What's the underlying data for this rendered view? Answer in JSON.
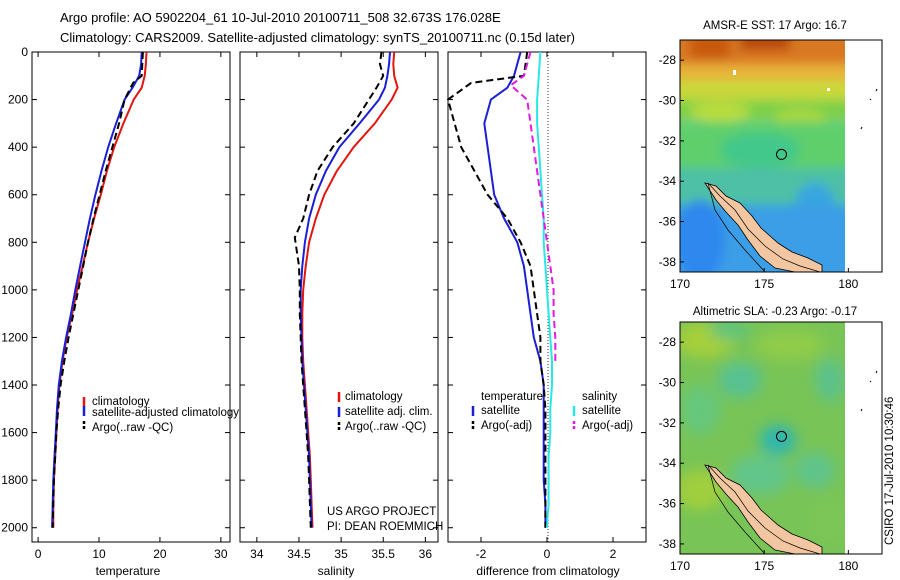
{
  "title": {
    "line1": "Argo profile: AO 5902204_61 10-Jul-2010 20100711_508 32.673S 176.028E",
    "line2": "Climatology: CARS2009. Satellite-adjusted climatology: synTS_20100711.nc (0.15d later)"
  },
  "colors": {
    "red": "#e3150f",
    "blue": "#1a1fd6",
    "black": "#000000",
    "cyan": "#27e8e6",
    "magenta": "#e21be0"
  },
  "project": {
    "line1": "US ARGO PROJECT",
    "line2": "PI: DEAN ROEMMICH"
  },
  "stamp": "CSIRO 17-Jul-2010 10:30:46",
  "chart_data": [
    {
      "type": "line",
      "id": "temperature",
      "xlabel": "temperature",
      "ylabel": "",
      "xlim": [
        -1,
        31.5
      ],
      "ylim": [
        2060,
        0
      ],
      "y_reversed": true,
      "xticks": [
        0,
        10,
        20,
        30
      ],
      "yticks": [
        0,
        200,
        400,
        600,
        800,
        1000,
        1200,
        1400,
        1600,
        1800,
        2000
      ],
      "legend_position": "middle-right",
      "series": [
        {
          "name": "climatology",
          "color": "red",
          "dash": false,
          "x": [
            17.8,
            17.7,
            17.5,
            17.0,
            15.7,
            14.0,
            12.5,
            11.3,
            10.3,
            9.2,
            8.2,
            7.3,
            6.4,
            5.6,
            4.7,
            4.0,
            3.5,
            3.2,
            3.0,
            2.8,
            2.6,
            2.5,
            2.5
          ],
          "y": [
            0,
            50,
            100,
            150,
            200,
            300,
            400,
            500,
            600,
            700,
            800,
            900,
            1000,
            1100,
            1200,
            1300,
            1400,
            1500,
            1600,
            1700,
            1800,
            1900,
            2000
          ]
        },
        {
          "name": "satellite-adjusted climatology",
          "color": "blue",
          "dash": false,
          "x": [
            17.0,
            16.9,
            16.6,
            15.5,
            14.2,
            12.8,
            11.5,
            10.4,
            9.4,
            8.5,
            7.7,
            6.9,
            6.1,
            5.4,
            4.6,
            3.9,
            3.4,
            3.1,
            2.9,
            2.7,
            2.5,
            2.4,
            2.3
          ],
          "y": [
            0,
            50,
            100,
            150,
            200,
            300,
            400,
            500,
            600,
            700,
            800,
            900,
            1000,
            1100,
            1200,
            1300,
            1400,
            1500,
            1600,
            1700,
            1800,
            1900,
            2000
          ]
        },
        {
          "name": "Argo(..raw -QC)",
          "color": "black",
          "dash": true,
          "x": [
            17.2,
            17.0,
            15.6,
            14.2,
            13.3,
            12.2,
            11.1,
            10.1,
            9.1,
            8.2,
            7.4,
            6.6,
            5.8,
            5.0,
            4.3,
            3.7,
            3.3,
            3.0,
            2.8,
            2.6,
            2.5,
            2.4
          ],
          "y": [
            0,
            100,
            130,
            200,
            300,
            400,
            500,
            600,
            700,
            800,
            900,
            1000,
            1100,
            1200,
            1300,
            1400,
            1500,
            1600,
            1700,
            1800,
            1900,
            2000
          ]
        }
      ]
    },
    {
      "type": "line",
      "id": "salinity",
      "xlabel": "salinity",
      "ylabel": "",
      "xlim": [
        33.8,
        36.15
      ],
      "ylim": [
        2060,
        0
      ],
      "y_reversed": true,
      "xticks": [
        34,
        34.5,
        35,
        35.5,
        36
      ],
      "legend_position": "middle-right",
      "series": [
        {
          "name": "climatology",
          "color": "red",
          "dash": false,
          "x": [
            35.63,
            35.62,
            35.63,
            35.67,
            35.6,
            35.4,
            35.15,
            34.95,
            34.8,
            34.7,
            34.62,
            34.58,
            34.55,
            34.54,
            34.54,
            34.55,
            34.57,
            34.59,
            34.61,
            34.63,
            34.64,
            34.65,
            34.66
          ],
          "y": [
            0,
            50,
            100,
            150,
            200,
            300,
            400,
            500,
            600,
            700,
            800,
            900,
            1000,
            1100,
            1200,
            1300,
            1400,
            1500,
            1600,
            1700,
            1800,
            1900,
            2000
          ]
        },
        {
          "name": "satellite adj. clim.",
          "color": "blue",
          "dash": false,
          "x": [
            35.58,
            35.57,
            35.55,
            35.52,
            35.45,
            35.22,
            34.98,
            34.82,
            34.7,
            34.62,
            34.57,
            34.54,
            34.52,
            34.52,
            34.53,
            34.54,
            34.56,
            34.58,
            34.6,
            34.62,
            34.63,
            34.64,
            34.65
          ],
          "y": [
            0,
            50,
            100,
            150,
            200,
            300,
            400,
            500,
            600,
            700,
            800,
            900,
            1000,
            1100,
            1200,
            1300,
            1400,
            1500,
            1600,
            1700,
            1800,
            1900,
            2000
          ]
        },
        {
          "name": "Argo(..raw -QC)",
          "color": "black",
          "dash": true,
          "x": [
            35.48,
            35.46,
            35.5,
            35.42,
            35.33,
            35.15,
            34.9,
            34.72,
            34.62,
            34.55,
            34.45,
            34.5,
            34.51,
            34.51,
            34.52,
            34.53,
            34.55,
            34.57,
            34.59,
            34.61,
            34.62,
            34.63,
            34.64
          ],
          "y": [
            0,
            50,
            100,
            150,
            200,
            300,
            400,
            500,
            600,
            700,
            780,
            900,
            1000,
            1100,
            1200,
            1300,
            1400,
            1500,
            1600,
            1700,
            1800,
            1900,
            2000
          ]
        }
      ]
    },
    {
      "type": "line",
      "id": "difference",
      "xlabel": "difference from climatology",
      "ylabel": "",
      "xlim": [
        -3,
        3
      ],
      "ylim": [
        2060,
        0
      ],
      "y_reversed": true,
      "xticks": [
        -2,
        0,
        2
      ],
      "legend_titles": [
        "temperature",
        "salinity"
      ],
      "legend_position": "middle-right",
      "series": [
        {
          "name": "satellite",
          "group": "temperature",
          "color": "blue",
          "dash": false,
          "x": [
            -0.8,
            -1.0,
            -1.2,
            -1.7,
            -1.9,
            -1.8,
            -1.7,
            -1.6,
            -1.3,
            -0.9,
            -0.7,
            -0.6,
            -0.5,
            -0.4,
            -0.2,
            -0.1,
            -0.1,
            -0.1,
            -0.1,
            -0.1,
            -0.05,
            -0.05
          ],
          "y": [
            0,
            100,
            150,
            200,
            300,
            400,
            500,
            600,
            700,
            800,
            900,
            1000,
            1100,
            1200,
            1300,
            1400,
            1500,
            1600,
            1700,
            1800,
            1900,
            2000
          ]
        },
        {
          "name": "Argo(-adj)",
          "group": "temperature",
          "color": "black",
          "dash": true,
          "x": [
            -0.6,
            -0.7,
            -2.3,
            -3.0,
            -2.8,
            -2.6,
            -2.2,
            -1.8,
            -1.2,
            -0.8,
            -0.5,
            -0.4,
            -0.3,
            -0.2,
            -0.2,
            -0.1,
            -0.05,
            -0.05,
            -0.05,
            -0.05,
            -0.05
          ],
          "y": [
            0,
            100,
            130,
            200,
            300,
            400,
            500,
            600,
            700,
            800,
            900,
            1000,
            1100,
            1200,
            1300,
            1400,
            1500,
            1600,
            1700,
            1800,
            2000
          ]
        },
        {
          "name": "satellite",
          "group": "salinity",
          "color": "cyan",
          "dash": false,
          "x": [
            -0.2,
            -0.25,
            -0.3,
            -0.3,
            -0.25,
            -0.2,
            -0.15,
            -0.1,
            -0.1,
            -0.05,
            0.0,
            0.05,
            0.1,
            0.15,
            0.15,
            0.1,
            0.1,
            0.05,
            0.05,
            0.05,
            0.02,
            0.0
          ],
          "y": [
            0,
            100,
            200,
            300,
            400,
            500,
            600,
            700,
            800,
            900,
            1000,
            1100,
            1200,
            1300,
            1400,
            1500,
            1600,
            1700,
            1800,
            1900,
            1950,
            2000
          ]
        },
        {
          "name": "Argo(-adj)",
          "group": "salinity",
          "color": "magenta",
          "dash": true,
          "x": [
            -0.5,
            -0.6,
            -0.7,
            -1.1,
            -0.6,
            -0.5,
            -0.4,
            -0.3,
            -0.2,
            0.1,
            0.2,
            0.2,
            0.25,
            0.25
          ],
          "y": [
            0,
            50,
            100,
            140,
            200,
            300,
            400,
            500,
            600,
            900,
            1000,
            1100,
            1200,
            1300
          ]
        }
      ]
    },
    {
      "type": "heatmap",
      "id": "sst",
      "title": "AMSR-E SST: 17 Argo: 16.7",
      "xlim": [
        170,
        182
      ],
      "ylim": [
        -38.5,
        -27
      ],
      "xticks": [
        170,
        175,
        180
      ],
      "yticks": [
        -28,
        -30,
        -32,
        -34,
        -36,
        -38
      ],
      "marker": {
        "lon": 176.028,
        "lat": -32.673
      }
    },
    {
      "type": "heatmap",
      "id": "sla",
      "title": "Altimetric SLA: -0.23 Argo: -0.17",
      "xlim": [
        170,
        182
      ],
      "ylim": [
        -38.5,
        -27
      ],
      "xticks": [
        170,
        175,
        180
      ],
      "yticks": [
        -28,
        -30,
        -32,
        -34,
        -36,
        -38
      ],
      "marker": {
        "lon": 176.028,
        "lat": -32.673
      }
    }
  ]
}
